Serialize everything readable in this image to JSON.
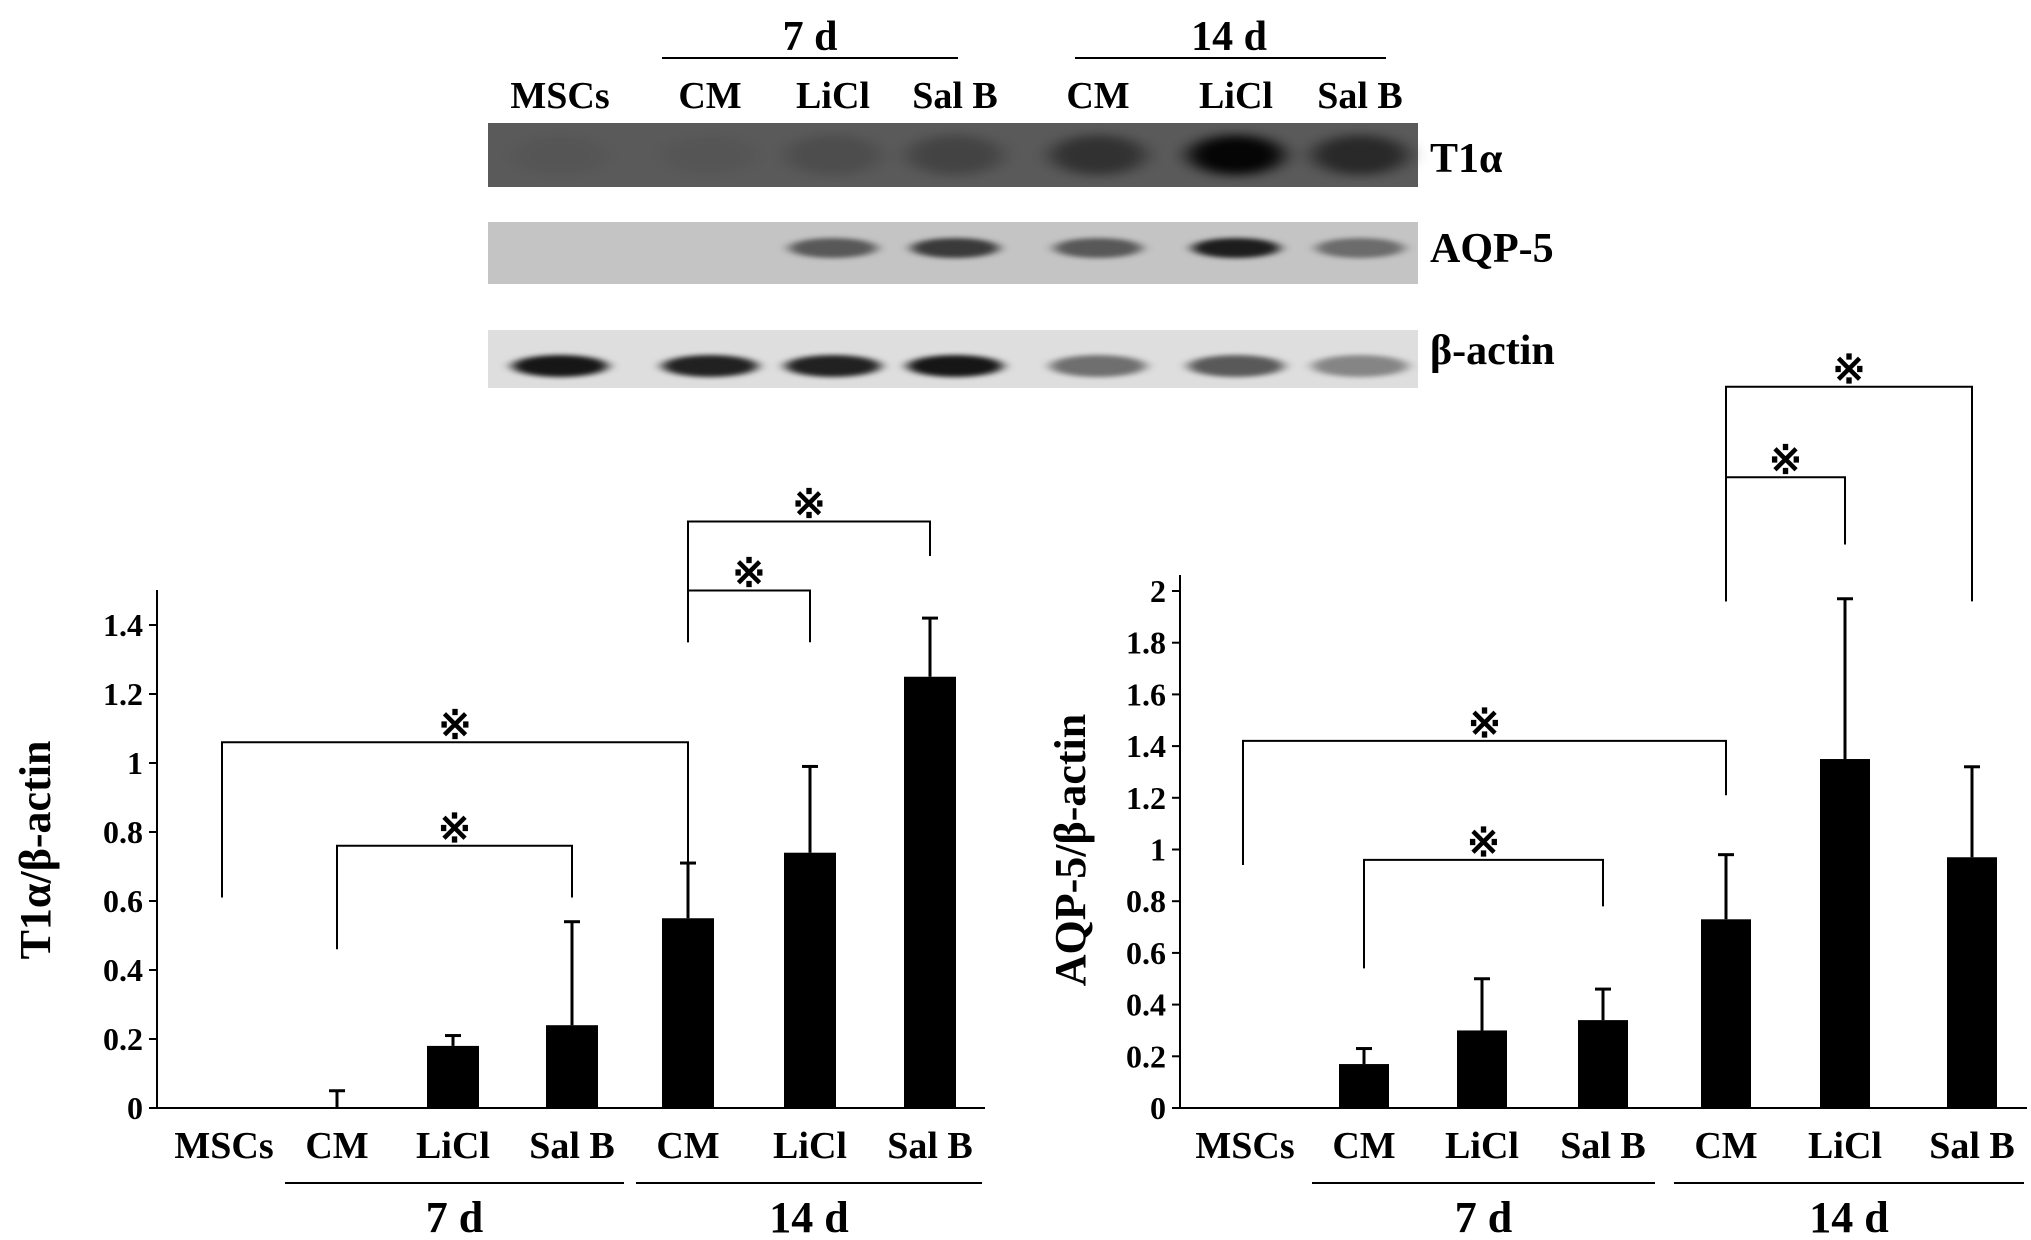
{
  "blot": {
    "group_labels": [
      "7 d",
      "14 d"
    ],
    "lane_labels": [
      "MSCs",
      "CM",
      "LiCl",
      "Sal B",
      "CM",
      "LiCl",
      "Sal B"
    ],
    "bands": [
      {
        "label": "T1α",
        "intensity": [
          0.05,
          0.05,
          0.15,
          0.25,
          0.45,
          0.95,
          0.55
        ]
      },
      {
        "label": "AQP-5",
        "intensity": [
          0.0,
          0.0,
          0.55,
          0.7,
          0.55,
          0.85,
          0.45
        ]
      },
      {
        "label": "β-actin",
        "intensity": [
          0.9,
          0.85,
          0.85,
          0.9,
          0.5,
          0.6,
          0.4
        ]
      }
    ]
  },
  "chart_data": [
    {
      "type": "bar",
      "ylabel": "T1α/β-actin",
      "ylim": [
        0,
        1.5
      ],
      "yticks": [
        "0",
        "0.2",
        "0.4",
        "0.6",
        "0.8",
        "1",
        "1.2",
        "1.4"
      ],
      "ytick_values": [
        0,
        0.2,
        0.4,
        0.6,
        0.8,
        1.0,
        1.2,
        1.4
      ],
      "categories": [
        "MSCs",
        "CM",
        "LiCl",
        "Sal B",
        "CM",
        "LiCl",
        "Sal B"
      ],
      "values": [
        0,
        0,
        0.18,
        0.24,
        0.55,
        0.74,
        1.25
      ],
      "errors": [
        0,
        0.05,
        0.03,
        0.3,
        0.16,
        0.25,
        0.17
      ],
      "groups": [
        {
          "label": "7 d",
          "from": 1,
          "to": 3
        },
        {
          "label": "14 d",
          "from": 4,
          "to": 6
        }
      ],
      "brackets": [
        {
          "from": 0,
          "to": 4,
          "label": "※",
          "left_bottom": 0.61,
          "right_bottom": 0.61,
          "level": 1.06
        },
        {
          "from": 1,
          "to": 3,
          "label": "※",
          "left_bottom": 0.46,
          "right_bottom": 0.61,
          "level": 0.76
        },
        {
          "from": 4,
          "to": 5,
          "label": "※",
          "left_bottom": 1.35,
          "right_bottom": 1.35,
          "level": 1.5
        },
        {
          "from": 4,
          "to": 6,
          "label": "※",
          "left_bottom": 1.35,
          "right_bottom": 1.6,
          "level": 1.7
        }
      ]
    },
    {
      "type": "bar",
      "ylabel": "AQP-5/β-actin",
      "ylim": [
        0,
        2
      ],
      "yticks": [
        "0",
        "0.2",
        "0.4",
        "0.6",
        "0.8",
        "1",
        "1.2",
        "1.4",
        "1.6",
        "1.8",
        "2"
      ],
      "ytick_values": [
        0,
        0.2,
        0.4,
        0.6,
        0.8,
        1.0,
        1.2,
        1.4,
        1.6,
        1.8,
        2.0
      ],
      "categories": [
        "MSCs",
        "CM",
        "LiCl",
        "Sal B",
        "CM",
        "LiCl",
        "Sal B"
      ],
      "values": [
        0,
        0.17,
        0.3,
        0.34,
        0.73,
        1.35,
        0.97
      ],
      "errors": [
        0,
        0.06,
        0.2,
        0.12,
        0.25,
        0.62,
        0.35
      ],
      "groups": [
        {
          "label": "7 d",
          "from": 1,
          "to": 3
        },
        {
          "label": "14 d",
          "from": 4,
          "to": 6
        }
      ],
      "brackets": [
        {
          "from": 0,
          "to": 4,
          "label": "※",
          "left_bottom": 0.94,
          "right_bottom": 1.21,
          "level": 1.42
        },
        {
          "from": 1,
          "to": 3,
          "label": "※",
          "left_bottom": 0.54,
          "right_bottom": 0.78,
          "level": 0.96
        },
        {
          "from": 4,
          "to": 5,
          "label": "※",
          "left_bottom": 1.96,
          "right_bottom": 2.18,
          "level": 2.44
        },
        {
          "from": 4,
          "to": 6,
          "label": "※",
          "left_bottom": 1.96,
          "right_bottom": 1.96,
          "level": 2.79
        }
      ]
    }
  ]
}
